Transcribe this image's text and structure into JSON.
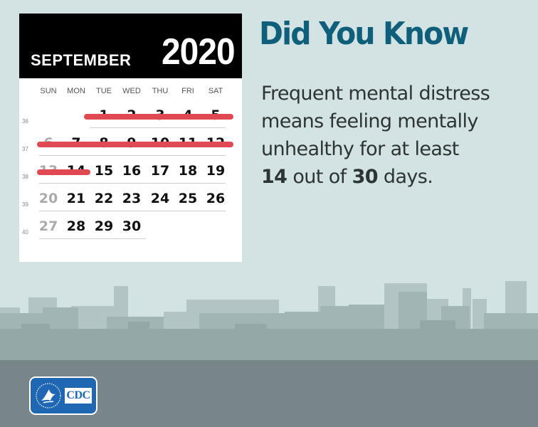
{
  "headline": "Did You Know",
  "body": {
    "line1": "Frequent mental distress",
    "line2": "means feeling mentally",
    "line3": "unhealthy for at least",
    "num1": "14",
    "mid": " out of ",
    "num2": "30",
    "end": " days."
  },
  "calendar": {
    "month": "SEPTEMBER",
    "year": "2020",
    "weekdays": [
      "SUN",
      "MON",
      "TUE",
      "WED",
      "THU",
      "FRI",
      "SAT"
    ],
    "weeks": [
      {
        "week": "36",
        "days": [
          "",
          "",
          "1",
          "2",
          "3",
          "4",
          "5"
        ]
      },
      {
        "week": "37",
        "days": [
          "6",
          "7",
          "8",
          "9",
          "10",
          "11",
          "12"
        ]
      },
      {
        "week": "38",
        "days": [
          "13",
          "14",
          "15",
          "16",
          "17",
          "18",
          "19"
        ]
      },
      {
        "week": "39",
        "days": [
          "20",
          "21",
          "22",
          "23",
          "24",
          "25",
          "26"
        ]
      },
      {
        "week": "40",
        "days": [
          "27",
          "28",
          "29",
          "30",
          "",
          "",
          ""
        ]
      }
    ],
    "crossed_out_days": [
      "1",
      "2",
      "3",
      "4",
      "5",
      "6",
      "7",
      "8",
      "9",
      "10",
      "11",
      "12",
      "13",
      "14"
    ],
    "muted_days": [
      "6",
      "13",
      "20",
      "27"
    ],
    "strike_color": "#e04852"
  },
  "logo": {
    "text": "CDC",
    "seal_icon": "hhs-eagle-seal-icon"
  },
  "colors": {
    "headline": "#0f5f7b",
    "background": "#d3e2e2",
    "logo_blue": "#1f67b2"
  }
}
